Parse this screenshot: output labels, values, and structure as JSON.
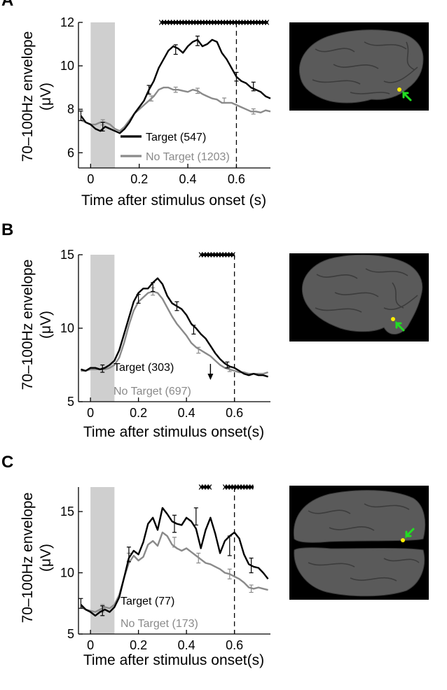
{
  "colors": {
    "target": "#000000",
    "no_target": "#8a8a8a",
    "stim_shade": "#cfcfcf",
    "brain_bg": "#000000",
    "brain": "#5a5a5a",
    "electrode": "#ffee00",
    "arrow": "#22dd22"
  },
  "chart_data": [
    {
      "panel_label": "A",
      "type": "line",
      "xlabel": "Time after stimulus onset (s)",
      "ylabel": "70–100Hz envelope",
      "ylabel_unit": "(μV)",
      "xlim": [
        -0.05,
        0.74
      ],
      "ylim": [
        5.3,
        12
      ],
      "xticks": [
        0,
        0.2,
        0.4,
        0.6
      ],
      "xtick_labels": [
        "0",
        "0.2",
        "0.4",
        "0.6"
      ],
      "yticks": [
        6,
        8,
        10,
        12
      ],
      "ytick_labels": [
        "6",
        "8",
        "10",
        "12"
      ],
      "stimulus_window": [
        0,
        0.1
      ],
      "dashed_line_x": 0.6,
      "significance_segments": [
        [
          0.29,
          0.73
        ]
      ],
      "arrow_x": null,
      "series": [
        {
          "name": "Target (547)",
          "x": [
            -0.04,
            -0.02,
            0,
            0.02,
            0.04,
            0.06,
            0.08,
            0.1,
            0.12,
            0.14,
            0.16,
            0.18,
            0.2,
            0.22,
            0.24,
            0.26,
            0.28,
            0.3,
            0.32,
            0.34,
            0.36,
            0.38,
            0.4,
            0.42,
            0.44,
            0.46,
            0.48,
            0.5,
            0.52,
            0.54,
            0.56,
            0.58,
            0.6,
            0.62,
            0.64,
            0.66,
            0.68,
            0.7,
            0.72,
            0.74
          ],
          "y": [
            7.7,
            7.4,
            7.3,
            7.1,
            7.0,
            7.2,
            7.1,
            7.0,
            6.9,
            7.1,
            7.4,
            7.8,
            8.1,
            8.4,
            8.9,
            9.3,
            9.9,
            10.3,
            10.7,
            10.9,
            10.8,
            10.6,
            10.9,
            11.1,
            11.2,
            10.9,
            11.0,
            11.2,
            11.1,
            10.6,
            10.3,
            9.9,
            9.5,
            9.3,
            9.2,
            9.0,
            8.9,
            8.8,
            8.6,
            8.5
          ],
          "error_x": [
            -0.04,
            0.05,
            0.24,
            0.35,
            0.44,
            0.6,
            0.67
          ],
          "error_y": [
            7.7,
            7.2,
            8.9,
            10.75,
            11.15,
            9.5,
            9.05
          ],
          "error_half": [
            0.22,
            0.2,
            0.2,
            0.22,
            0.22,
            0.2,
            0.2
          ]
        },
        {
          "name": "No Target (1203)",
          "x": [
            -0.04,
            -0.02,
            0,
            0.02,
            0.04,
            0.06,
            0.08,
            0.1,
            0.12,
            0.14,
            0.16,
            0.18,
            0.2,
            0.22,
            0.24,
            0.26,
            0.28,
            0.3,
            0.32,
            0.34,
            0.36,
            0.38,
            0.4,
            0.42,
            0.44,
            0.46,
            0.48,
            0.5,
            0.52,
            0.54,
            0.56,
            0.58,
            0.6,
            0.62,
            0.64,
            0.66,
            0.68,
            0.7,
            0.72,
            0.74
          ],
          "y": [
            7.5,
            7.4,
            7.3,
            7.3,
            7.4,
            7.4,
            7.3,
            7.1,
            7.0,
            7.2,
            7.5,
            7.8,
            8.0,
            8.2,
            8.4,
            8.6,
            8.9,
            9.0,
            9.0,
            8.9,
            8.9,
            8.85,
            8.8,
            8.9,
            8.85,
            8.7,
            8.6,
            8.5,
            8.45,
            8.3,
            8.3,
            8.3,
            8.2,
            8.1,
            8.0,
            7.9,
            7.9,
            7.85,
            7.95,
            7.9
          ],
          "error_x": [
            0.05,
            0.25,
            0.35,
            0.44,
            0.55,
            0.67
          ],
          "error_y": [
            7.4,
            8.5,
            8.9,
            8.85,
            8.4,
            7.9
          ],
          "error_half": [
            0.12,
            0.12,
            0.12,
            0.12,
            0.12,
            0.12
          ]
        }
      ],
      "legend": [
        {
          "text": "Target (547)",
          "series": 0
        },
        {
          "text": "No Target (1203)",
          "series": 1
        }
      ]
    },
    {
      "panel_label": "B",
      "type": "line",
      "xlabel": "Time after stimulus onset(s)",
      "ylabel": "70–100Hz envelope",
      "ylabel_unit": "(μV)",
      "xlim": [
        -0.05,
        0.75
      ],
      "ylim": [
        5,
        15
      ],
      "xticks": [
        0,
        0.2,
        0.4,
        0.6
      ],
      "xtick_labels": [
        "0",
        "0.2",
        "0.4",
        "0.6"
      ],
      "yticks": [
        5,
        10,
        15
      ],
      "ytick_labels": [
        "5",
        "10",
        "15"
      ],
      "stimulus_window": [
        0,
        0.1
      ],
      "dashed_line_x": 0.6,
      "significance_segments": [
        [
          0.46,
          0.6
        ]
      ],
      "arrow_x": 0.5,
      "series": [
        {
          "name": "Target (303)",
          "x": [
            -0.04,
            -0.02,
            0,
            0.02,
            0.04,
            0.06,
            0.08,
            0.1,
            0.12,
            0.14,
            0.16,
            0.18,
            0.2,
            0.22,
            0.24,
            0.26,
            0.28,
            0.3,
            0.32,
            0.34,
            0.36,
            0.38,
            0.4,
            0.42,
            0.44,
            0.46,
            0.48,
            0.5,
            0.52,
            0.54,
            0.56,
            0.58,
            0.6,
            0.62,
            0.64,
            0.66,
            0.68,
            0.7,
            0.72,
            0.74
          ],
          "y": [
            7.2,
            7.1,
            7.3,
            7.3,
            7.2,
            7.3,
            7.5,
            7.8,
            8.5,
            9.6,
            10.7,
            11.8,
            12.4,
            12.7,
            12.7,
            13.1,
            13.4,
            13.0,
            12.2,
            11.7,
            11.5,
            11.3,
            10.9,
            10.3,
            10.0,
            9.6,
            9.3,
            8.8,
            8.3,
            7.9,
            7.6,
            7.4,
            7.3,
            7.1,
            6.9,
            6.8,
            6.9,
            6.8,
            6.8,
            6.7
          ],
          "error_x": [
            0.05,
            0.2,
            0.26,
            0.36,
            0.43,
            0.57
          ],
          "error_y": [
            7.25,
            12.0,
            12.8,
            11.5,
            9.9,
            7.5
          ],
          "error_half": [
            0.25,
            0.3,
            0.3,
            0.3,
            0.3,
            0.2
          ]
        },
        {
          "name": "No Target (697)",
          "x": [
            -0.04,
            -0.02,
            0,
            0.02,
            0.04,
            0.06,
            0.08,
            0.1,
            0.12,
            0.14,
            0.16,
            0.18,
            0.2,
            0.22,
            0.24,
            0.26,
            0.28,
            0.3,
            0.32,
            0.34,
            0.36,
            0.38,
            0.4,
            0.42,
            0.44,
            0.46,
            0.48,
            0.5,
            0.52,
            0.54,
            0.56,
            0.58,
            0.6,
            0.62,
            0.64,
            0.66,
            0.68,
            0.7,
            0.72,
            0.74
          ],
          "y": [
            7.1,
            7.1,
            7.2,
            7.2,
            7.2,
            7.2,
            7.3,
            7.5,
            8.0,
            9.0,
            10.2,
            11.2,
            11.8,
            12.1,
            12.4,
            12.5,
            12.4,
            12.0,
            11.4,
            10.8,
            10.3,
            9.9,
            9.5,
            9.0,
            8.7,
            8.5,
            8.3,
            8.1,
            7.8,
            7.5,
            7.3,
            7.2,
            7.1,
            7.0,
            7.0,
            6.9,
            6.9,
            6.9,
            6.9,
            7.0
          ],
          "error_x": [
            0.26,
            0.45,
            0.58
          ],
          "error_y": [
            12.5,
            8.5,
            7.2
          ],
          "error_half": [
            0.25,
            0.2,
            0.15
          ]
        }
      ],
      "legend": [
        {
          "text": "Target (303)",
          "series": 0
        },
        {
          "text": "No Target (697)",
          "series": 1
        }
      ]
    },
    {
      "panel_label": "C",
      "type": "line",
      "xlabel": "Time after stimulus onset(s)",
      "ylabel": "70–100Hz envelope",
      "ylabel_unit": "(μV)",
      "xlim": [
        -0.05,
        0.75
      ],
      "ylim": [
        5,
        17
      ],
      "xticks": [
        0,
        0.2,
        0.4,
        0.6
      ],
      "xtick_labels": [
        "0",
        "0.2",
        "0.4",
        "0.6"
      ],
      "yticks": [
        5,
        10,
        15
      ],
      "ytick_labels": [
        "5",
        "10",
        "15"
      ],
      "stimulus_window": [
        0,
        0.1
      ],
      "dashed_line_x": 0.6,
      "significance_segments": [
        [
          0.46,
          0.5
        ],
        [
          0.56,
          0.68
        ]
      ],
      "arrow_x": null,
      "series": [
        {
          "name": "Target (77)",
          "x": [
            -0.04,
            -0.02,
            0,
            0.02,
            0.04,
            0.06,
            0.08,
            0.1,
            0.12,
            0.14,
            0.16,
            0.18,
            0.2,
            0.22,
            0.24,
            0.26,
            0.28,
            0.3,
            0.32,
            0.34,
            0.36,
            0.38,
            0.4,
            0.42,
            0.44,
            0.46,
            0.48,
            0.5,
            0.52,
            0.54,
            0.56,
            0.58,
            0.6,
            0.62,
            0.64,
            0.66,
            0.68,
            0.7,
            0.72,
            0.74
          ],
          "y": [
            7.4,
            7.0,
            6.8,
            6.5,
            6.8,
            7.0,
            6.8,
            7.2,
            8.0,
            9.6,
            11.2,
            11.8,
            11.5,
            12.5,
            14.0,
            14.5,
            13.5,
            15.3,
            14.8,
            14.2,
            14.0,
            13.9,
            14.5,
            14.2,
            13.6,
            12.0,
            13.5,
            14.5,
            13.2,
            11.6,
            12.6,
            13.0,
            13.3,
            12.8,
            11.5,
            10.7,
            10.5,
            10.4,
            10.0,
            9.5
          ],
          "error_x": [
            -0.04,
            0.05,
            0.16,
            0.35,
            0.44,
            0.58,
            0.67
          ],
          "error_y": [
            7.5,
            6.9,
            11.5,
            14.0,
            14.6,
            12.2,
            10.6
          ],
          "error_half": [
            0.4,
            0.4,
            0.6,
            0.7,
            0.7,
            0.8,
            0.6
          ]
        },
        {
          "name": "No Target (173)",
          "x": [
            -0.04,
            -0.02,
            0,
            0.02,
            0.04,
            0.06,
            0.08,
            0.1,
            0.12,
            0.14,
            0.16,
            0.18,
            0.2,
            0.22,
            0.24,
            0.26,
            0.28,
            0.3,
            0.32,
            0.34,
            0.36,
            0.38,
            0.4,
            0.42,
            0.44,
            0.46,
            0.48,
            0.5,
            0.52,
            0.54,
            0.56,
            0.58,
            0.6,
            0.62,
            0.64,
            0.66,
            0.68,
            0.7,
            0.72,
            0.74
          ],
          "y": [
            7.2,
            7.0,
            6.9,
            6.8,
            7.0,
            7.2,
            7.1,
            7.4,
            8.2,
            9.6,
            10.8,
            11.4,
            11.0,
            11.3,
            12.3,
            12.6,
            12.2,
            13.3,
            13.0,
            12.3,
            12.0,
            11.8,
            12.0,
            11.7,
            11.4,
            11.1,
            10.8,
            10.7,
            10.5,
            10.3,
            10.0,
            9.9,
            9.7,
            9.5,
            9.2,
            8.8,
            8.7,
            8.8,
            8.7,
            8.6
          ],
          "error_x": [
            0.05,
            0.16,
            0.35,
            0.45,
            0.58,
            0.67
          ],
          "error_y": [
            7.1,
            11.3,
            12.5,
            11.2,
            9.9,
            8.7
          ],
          "error_half": [
            0.3,
            0.3,
            0.4,
            0.4,
            0.4,
            0.3
          ]
        }
      ],
      "legend": [
        {
          "text": "Target (77)",
          "series": 0
        },
        {
          "text": "No Target (173)",
          "series": 1
        }
      ]
    }
  ]
}
